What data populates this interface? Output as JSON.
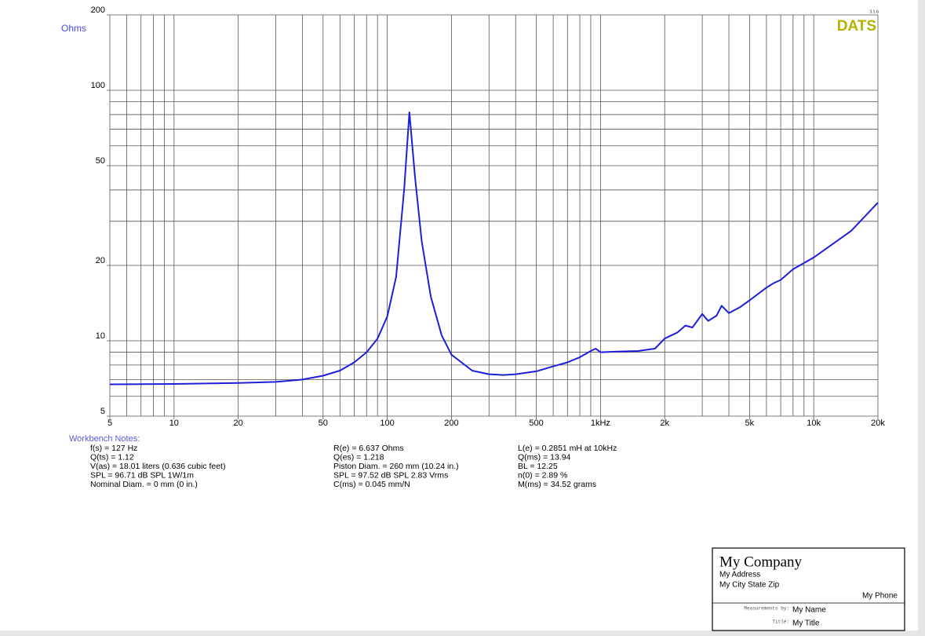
{
  "chart_data": {
    "type": "line",
    "y_axis_label": "Ohms",
    "logo": "DATS",
    "version": "3.1.6",
    "x": [
      5,
      10,
      20,
      30,
      40,
      50,
      60,
      70,
      80,
      90,
      100,
      110,
      120,
      127,
      135,
      145,
      160,
      180,
      200,
      250,
      300,
      350,
      400,
      500,
      600,
      700,
      800,
      900,
      950,
      1000,
      1200,
      1500,
      1800,
      2000,
      2300,
      2500,
      2700,
      3000,
      3200,
      3500,
      3700,
      4000,
      4500,
      5000,
      6000,
      6500,
      7000,
      8000,
      10000,
      15000,
      20000
    ],
    "series": [
      {
        "color": "#1f1fd8",
        "values": [
          6.7,
          6.72,
          6.78,
          6.85,
          7.0,
          7.25,
          7.6,
          8.2,
          9.0,
          10.2,
          12.5,
          18,
          40,
          81.7,
          45,
          25,
          15,
          10.5,
          8.8,
          7.6,
          7.35,
          7.3,
          7.35,
          7.55,
          7.9,
          8.2,
          8.6,
          9.1,
          9.3,
          9.0,
          9.05,
          9.1,
          9.3,
          10.2,
          10.8,
          11.5,
          11.3,
          12.8,
          12.0,
          12.6,
          13.8,
          12.9,
          13.6,
          14.5,
          16.3,
          17.0,
          17.5,
          19.3,
          21.5,
          27.5,
          35.6
        ]
      }
    ],
    "xlim": [
      5,
      20000
    ],
    "ylim": [
      5,
      200
    ],
    "log_x": true,
    "log_y": true,
    "grid": true,
    "xticks": [
      5,
      10,
      20,
      50,
      100,
      200,
      500,
      {
        "value": 1000,
        "label": "1kHz"
      },
      {
        "value": 2000,
        "label": "2k"
      },
      {
        "value": 5000,
        "label": "5k"
      },
      {
        "value": 10000,
        "label": "10k"
      },
      {
        "value": 20000,
        "label": "20k"
      }
    ],
    "yticks": [
      5,
      10,
      20,
      50,
      100,
      200
    ],
    "x_minor_grid": [
      6,
      7,
      8,
      9,
      30,
      40,
      60,
      70,
      80,
      90,
      300,
      400,
      600,
      700,
      800,
      900,
      3000,
      4000,
      6000,
      7000,
      8000,
      9000
    ],
    "y_minor_grid": [
      6,
      7,
      8,
      9,
      30,
      40,
      60,
      70,
      80,
      90
    ]
  },
  "notes": {
    "title": "Workbench Notes:",
    "columns": [
      [
        "f(s) = 127 Hz",
        "Q(ts) = 1.12",
        "V(as) = 18.01 liters  (0.636 cubic feet)",
        "SPL = 96.71 dB SPL 1W/1m",
        "Nominal Diam. = 0 mm (0 in.)"
      ],
      [
        "R(e) = 6.637 Ohms",
        "Q(es) = 1.218",
        "Piston Diam. = 260 mm (10.24 in.)",
        "SPL = 97.52 dB SPL 2.83 Vrms",
        "C(ms) = 0.045 mm/N"
      ],
      [
        "L(e) = 0.2851 mH at 10kHz",
        "Q(ms) = 13.94",
        "BL = 12.25",
        "n(0) = 2.89 %",
        "M(ms) = 34.52 grams"
      ]
    ]
  },
  "title_block": {
    "company": "My Company",
    "address": "My Address",
    "city": "My City State Zip",
    "phone": "My Phone",
    "measured_by_label": "Measurements by:",
    "measured_by": "My Name",
    "title_label": "Title:",
    "title": "My Title"
  }
}
